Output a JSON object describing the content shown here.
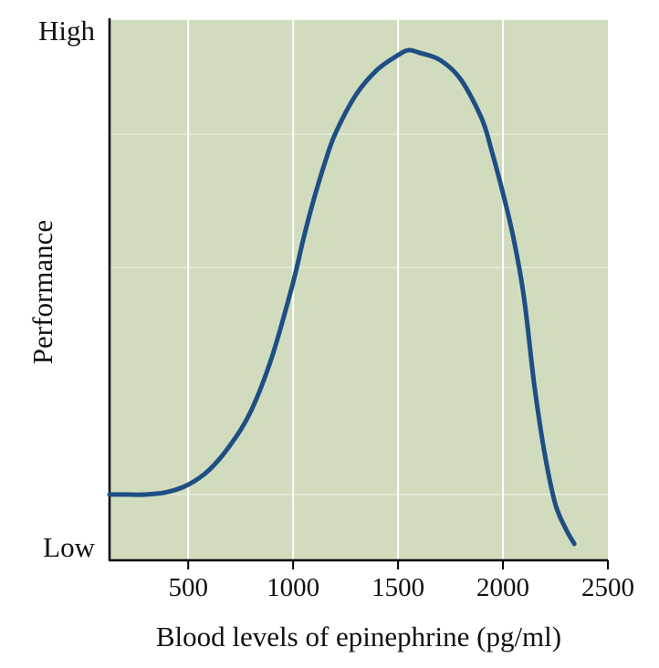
{
  "chart_data": {
    "type": "line",
    "title": "",
    "xlabel": "Blood levels of epinephrine (pg/ml)",
    "ylabel": "Performance",
    "xlim": [
      125,
      2500
    ],
    "ylim": [
      0,
      1
    ],
    "x_ticks": [
      500,
      1000,
      1500,
      2000,
      2500
    ],
    "x_tick_labels": [
      "500",
      "1000",
      "1500",
      "2000",
      "2500"
    ],
    "y_ticks": [
      0,
      1
    ],
    "y_tick_labels": [
      "Low",
      "High"
    ],
    "grid": true,
    "grid_y": [
      0.1,
      0.56,
      0.83
    ],
    "legend": "none",
    "series": [
      {
        "color": "#1f4e84",
        "x": [
          125,
          200,
          300,
          400,
          500,
          600,
          700,
          800,
          900,
          1000,
          1050,
          1100,
          1150,
          1200,
          1300,
          1400,
          1500,
          1550,
          1600,
          1700,
          1800,
          1900,
          1950,
          2000,
          2050,
          2100,
          2150,
          2200,
          2250,
          2300,
          2340
        ],
        "values": [
          0.1,
          0.1,
          0.1,
          0.105,
          0.12,
          0.15,
          0.2,
          0.27,
          0.38,
          0.53,
          0.62,
          0.7,
          0.77,
          0.83,
          0.91,
          0.96,
          0.99,
          1.0,
          0.995,
          0.98,
          0.94,
          0.86,
          0.79,
          0.71,
          0.62,
          0.5,
          0.32,
          0.18,
          0.08,
          0.03,
          0.0
        ]
      }
    ]
  },
  "colors": {
    "plot_background": "#d1dcbe",
    "gridline": "#ffffff",
    "axis": "#000000",
    "curve": "#1f4e84"
  }
}
